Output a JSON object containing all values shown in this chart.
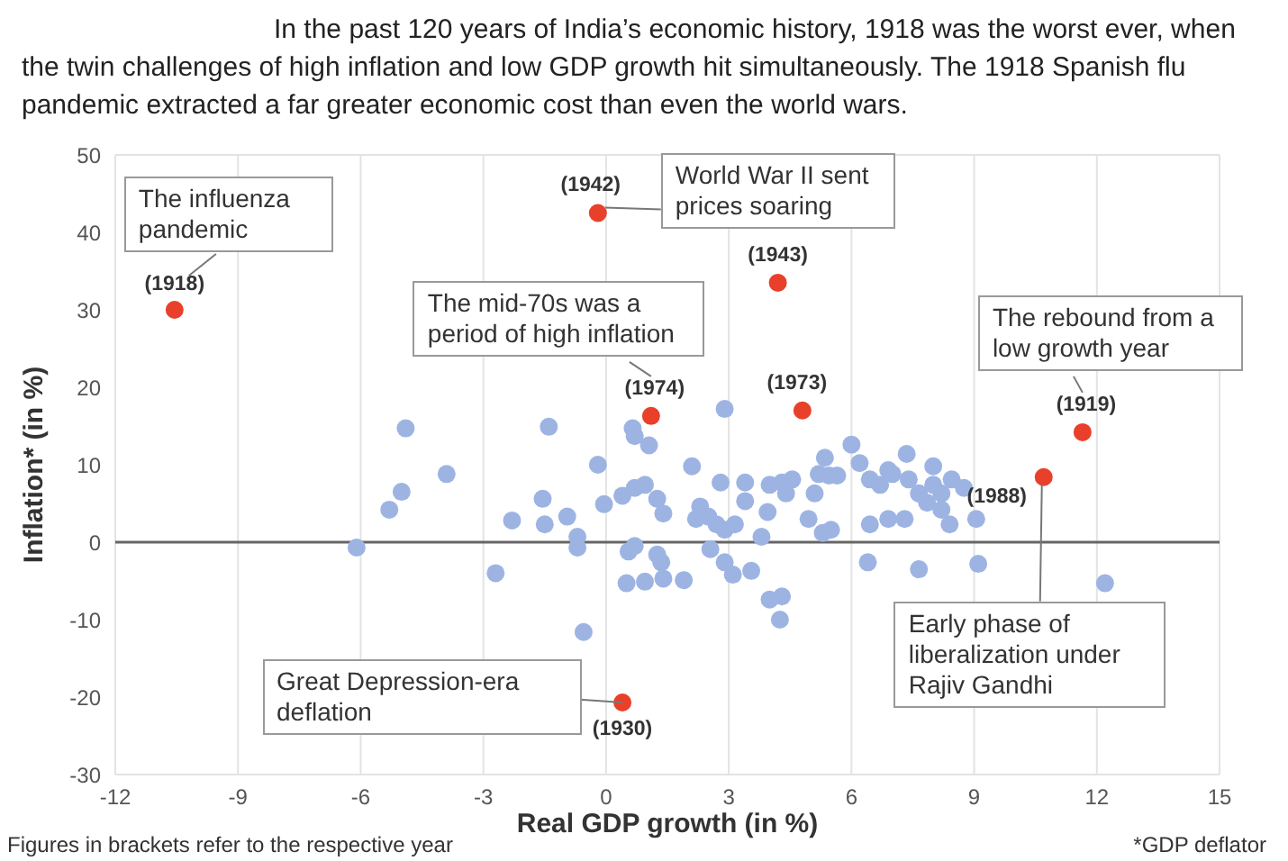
{
  "chart_data": {
    "type": "scatter",
    "title": "In the past 120 years of India’s economic history, 1918 was the worst ever, when the twin challenges of high inflation and low GDP growth hit simultaneously. The 1918 Spanish flu pandemic extracted a far greater economic cost than even the world wars.",
    "xlabel": "Real GDP growth (in %)",
    "ylabel": "Inflation* (in %)",
    "xlim": [
      -12,
      15
    ],
    "xticks": [
      -12,
      -9,
      -6,
      -3,
      0,
      3,
      6,
      9,
      12,
      15
    ],
    "ylim": [
      -30,
      50
    ],
    "yticks": [
      -30,
      -20,
      -10,
      0,
      10,
      20,
      30,
      40,
      50
    ],
    "grid": true,
    "legend": false,
    "marker": "circle",
    "ref_lines": [
      {
        "axis": "y",
        "value": 0,
        "color": "#666666"
      }
    ],
    "series": [
      {
        "color": "#9db4e3",
        "x": [
          -4.9,
          -3.9,
          -5.0,
          -5.3,
          -6.1,
          -2.7,
          -1.4,
          0.65,
          0.7,
          1.05,
          2.9,
          -0.2,
          2.1,
          -1.55,
          -2.3,
          -1.5,
          -0.95,
          -0.7,
          -0.7,
          -0.05,
          0.4,
          0.7,
          0.95,
          1.25,
          1.4,
          0.55,
          0.7,
          1.25,
          1.35,
          0.5,
          0.95,
          1.4,
          1.9,
          -0.55,
          2.3,
          2.2,
          2.5,
          2.8,
          2.7,
          2.9,
          3.15,
          3.4,
          3.4,
          2.55,
          2.9,
          3.1,
          3.55,
          3.8,
          3.95,
          4.0,
          4.3,
          4.55,
          4.4,
          4.0,
          4.3,
          4.25,
          4.95,
          5.1,
          5.2,
          5.35,
          5.45,
          5.65,
          5.3,
          5.5,
          6.0,
          6.2,
          6.45,
          6.7,
          7.0,
          6.4,
          6.45,
          6.9,
          7.35,
          6.9,
          7.4,
          8.0,
          7.65,
          8.0,
          8.2,
          8.45,
          8.75,
          7.85,
          8.2,
          8.4,
          9.05,
          7.3,
          7.65,
          9.1,
          12.2
        ],
        "values": [
          14.7,
          8.8,
          6.5,
          4.2,
          -0.7,
          -4.0,
          14.9,
          14.7,
          13.7,
          12.5,
          17.2,
          10,
          9.8,
          5.6,
          2.8,
          2.3,
          3.3,
          0.7,
          -0.7,
          4.9,
          6,
          7,
          7.4,
          5.6,
          3.7,
          -1.2,
          -0.5,
          -1.6,
          -2.6,
          -5.3,
          -5.1,
          -4.7,
          -4.9,
          -11.6,
          4.6,
          3,
          3.3,
          7.7,
          2.3,
          1.6,
          2.3,
          7.7,
          5.3,
          -0.9,
          -2.6,
          -4.2,
          -3.7,
          0.7,
          3.9,
          7.4,
          7.7,
          8.1,
          6.3,
          -7.4,
          -7,
          -10,
          3,
          6.3,
          8.8,
          10.9,
          8.6,
          8.6,
          1.2,
          1.6,
          12.6,
          10.2,
          8.1,
          7.4,
          8.8,
          -2.6,
          2.3,
          3,
          11.4,
          9.3,
          8.1,
          9.8,
          6.3,
          7.4,
          6.3,
          8.1,
          7,
          5.1,
          4.2,
          2.3,
          3,
          3,
          -3.5,
          -2.8,
          -5.3
        ]
      },
      {
        "color": "#e8402a",
        "x": [
          -10.55,
          -0.2,
          4.2,
          1.1,
          4.8,
          11.65,
          10.7,
          0.4
        ],
        "values": [
          30,
          42.5,
          33.5,
          16.3,
          17,
          14.2,
          8.4,
          -20.7
        ]
      }
    ],
    "annotations": [
      {
        "text": "The influenza pandemic",
        "x": -10.55,
        "y": 30
      },
      {
        "text": "(1918)",
        "x": -10.55,
        "y": 30
      },
      {
        "text": "World War II sent prices soaring",
        "x": -0.2,
        "y": 42.5
      },
      {
        "text": "(1942)",
        "x": -0.2,
        "y": 42.5
      },
      {
        "text": "(1943)",
        "x": 4.2,
        "y": 33.5
      },
      {
        "text": "The mid-70s was a period of high inflation",
        "x": 1.1,
        "y": 16.3
      },
      {
        "text": "(1974)",
        "x": 1.1,
        "y": 16.3
      },
      {
        "text": "(1973)",
        "x": 4.8,
        "y": 17
      },
      {
        "text": "The rebound from a low growth year",
        "x": 11.65,
        "y": 14.2
      },
      {
        "text": "(1919)",
        "x": 11.65,
        "y": 14.2
      },
      {
        "text": "Early phase of liberalization under Rajiv Gandhi",
        "x": 10.7,
        "y": 8.4
      },
      {
        "text": "(1988)",
        "x": 10.7,
        "y": 8.4
      },
      {
        "text": "Great Depression-era deflation",
        "x": 0.4,
        "y": -20.7
      },
      {
        "text": "(1930)",
        "x": 0.4,
        "y": -20.7
      },
      "Figures in brackets refer to the respective year",
      "*GDP deflator"
    ]
  }
}
